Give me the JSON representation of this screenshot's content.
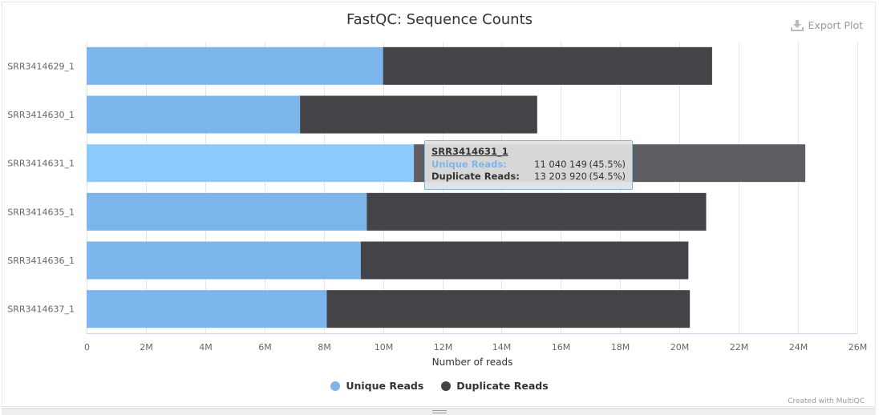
{
  "export": {
    "label": "Export Plot"
  },
  "credit": "Created with MultiQC",
  "colors": {
    "unique": "#7cb5ec",
    "unique_hover": "#8bcbfc",
    "duplicate": "#434348",
    "duplicate_hover": "#5d5d62",
    "grid": "#e6e6e6",
    "axis_text": "#666666"
  },
  "tooltip": {
    "sample": "SRR3414631_1",
    "rows": [
      {
        "label": "Unique Reads:",
        "value": "11 040 149",
        "pct": "(45.5%)"
      },
      {
        "label": "Duplicate Reads:",
        "value": "13 203 920",
        "pct": "(54.5%)"
      }
    ]
  },
  "chart_data": {
    "type": "bar",
    "orientation": "horizontal",
    "stacked": true,
    "title": "FastQC: Sequence Counts",
    "xlabel": "Number of reads",
    "ylabel": "",
    "xlim": [
      0,
      26000000
    ],
    "xticks": [
      0,
      2000000,
      4000000,
      6000000,
      8000000,
      10000000,
      12000000,
      14000000,
      16000000,
      18000000,
      20000000,
      22000000,
      24000000,
      26000000
    ],
    "xtick_labels": [
      "0",
      "2M",
      "4M",
      "6M",
      "8M",
      "10M",
      "12M",
      "14M",
      "16M",
      "18M",
      "20M",
      "22M",
      "24M",
      "26M"
    ],
    "grid": true,
    "legend_position": "bottom-center",
    "highlighted_category": "SRR3414631_1",
    "categories": [
      "SRR3414629_1",
      "SRR3414630_1",
      "SRR3414631_1",
      "SRR3414635_1",
      "SRR3414636_1",
      "SRR3414637_1"
    ],
    "series": [
      {
        "name": "Unique Reads",
        "values": [
          10000000,
          7200000,
          11040149,
          9450000,
          9250000,
          8100000
        ]
      },
      {
        "name": "Duplicate Reads",
        "values": [
          11100000,
          8000000,
          13203920,
          11450000,
          11050000,
          12250000
        ]
      }
    ]
  }
}
